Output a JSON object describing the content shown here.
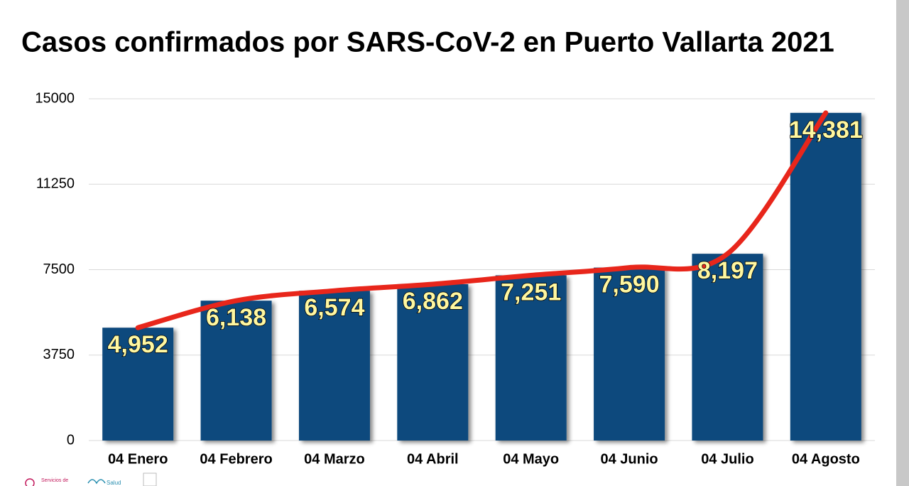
{
  "chart_data": {
    "type": "bar",
    "title": "Casos confirmados por SARS-CoV-2 en Puerto Vallarta 2021",
    "categories": [
      "04 Enero",
      "04 Febrero",
      "04 Marzo",
      "04 Abril",
      "04 Mayo",
      "04 Junio",
      "04 Julio",
      "04 Agosto"
    ],
    "values": [
      4952,
      6138,
      6574,
      6862,
      7251,
      7590,
      8197,
      14381
    ],
    "value_labels": [
      "4,952",
      "6,138",
      "6,574",
      "6,862",
      "7,251",
      "7,590",
      "8,197",
      "14,381"
    ],
    "color": "#0c4a7d",
    "trend_color": "#e8261b",
    "ylim": [
      0,
      15000
    ],
    "yticks": [
      0,
      3750,
      7500,
      11250,
      15000
    ],
    "grid": true
  },
  "footer": {
    "logo_1": "Servicios de",
    "logo_2": "Salud"
  }
}
